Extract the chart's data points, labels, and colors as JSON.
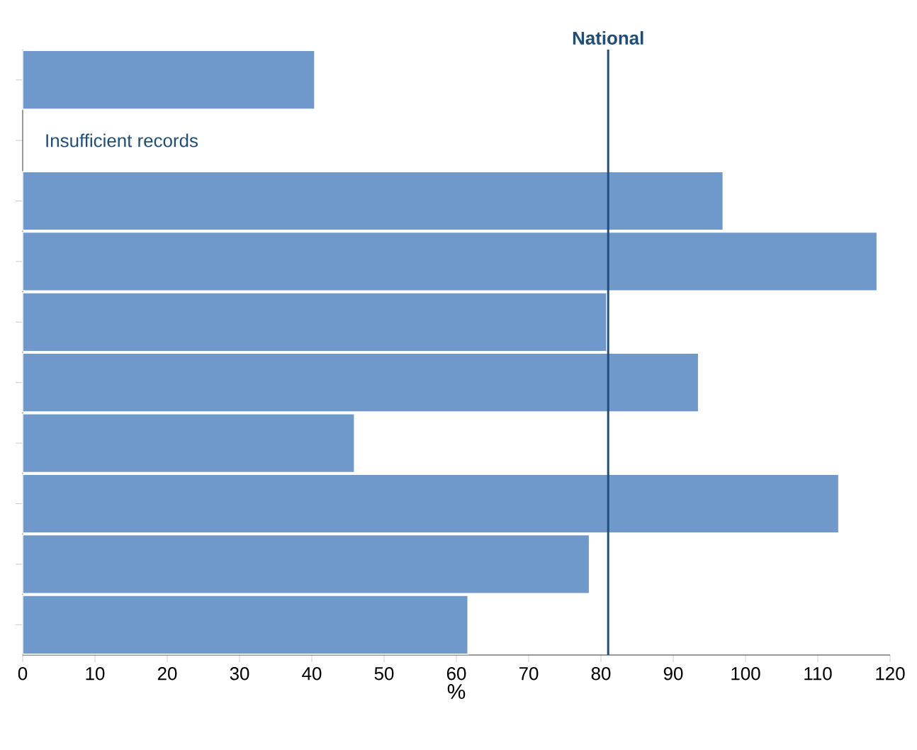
{
  "chart_data": {
    "type": "bar",
    "orientation": "horizontal",
    "xlabel": "%",
    "categories": [
      null,
      null,
      null,
      null,
      null,
      null,
      null,
      null,
      null,
      null
    ],
    "values": [
      40.4,
      null,
      96.9,
      118.2,
      80.8,
      93.5,
      45.9,
      112.9,
      78.4,
      61.6
    ],
    "color": "#7099cb",
    "xlim": [
      0,
      120
    ],
    "xticks": [
      0,
      10,
      20,
      30,
      40,
      50,
      60,
      70,
      80,
      90,
      100,
      110,
      120
    ],
    "ref_lines": [
      {
        "axis": "x",
        "value": 81,
        "label": "National",
        "color": "#1f4e79"
      }
    ],
    "annotations": [
      "Insufficient records"
    ]
  }
}
